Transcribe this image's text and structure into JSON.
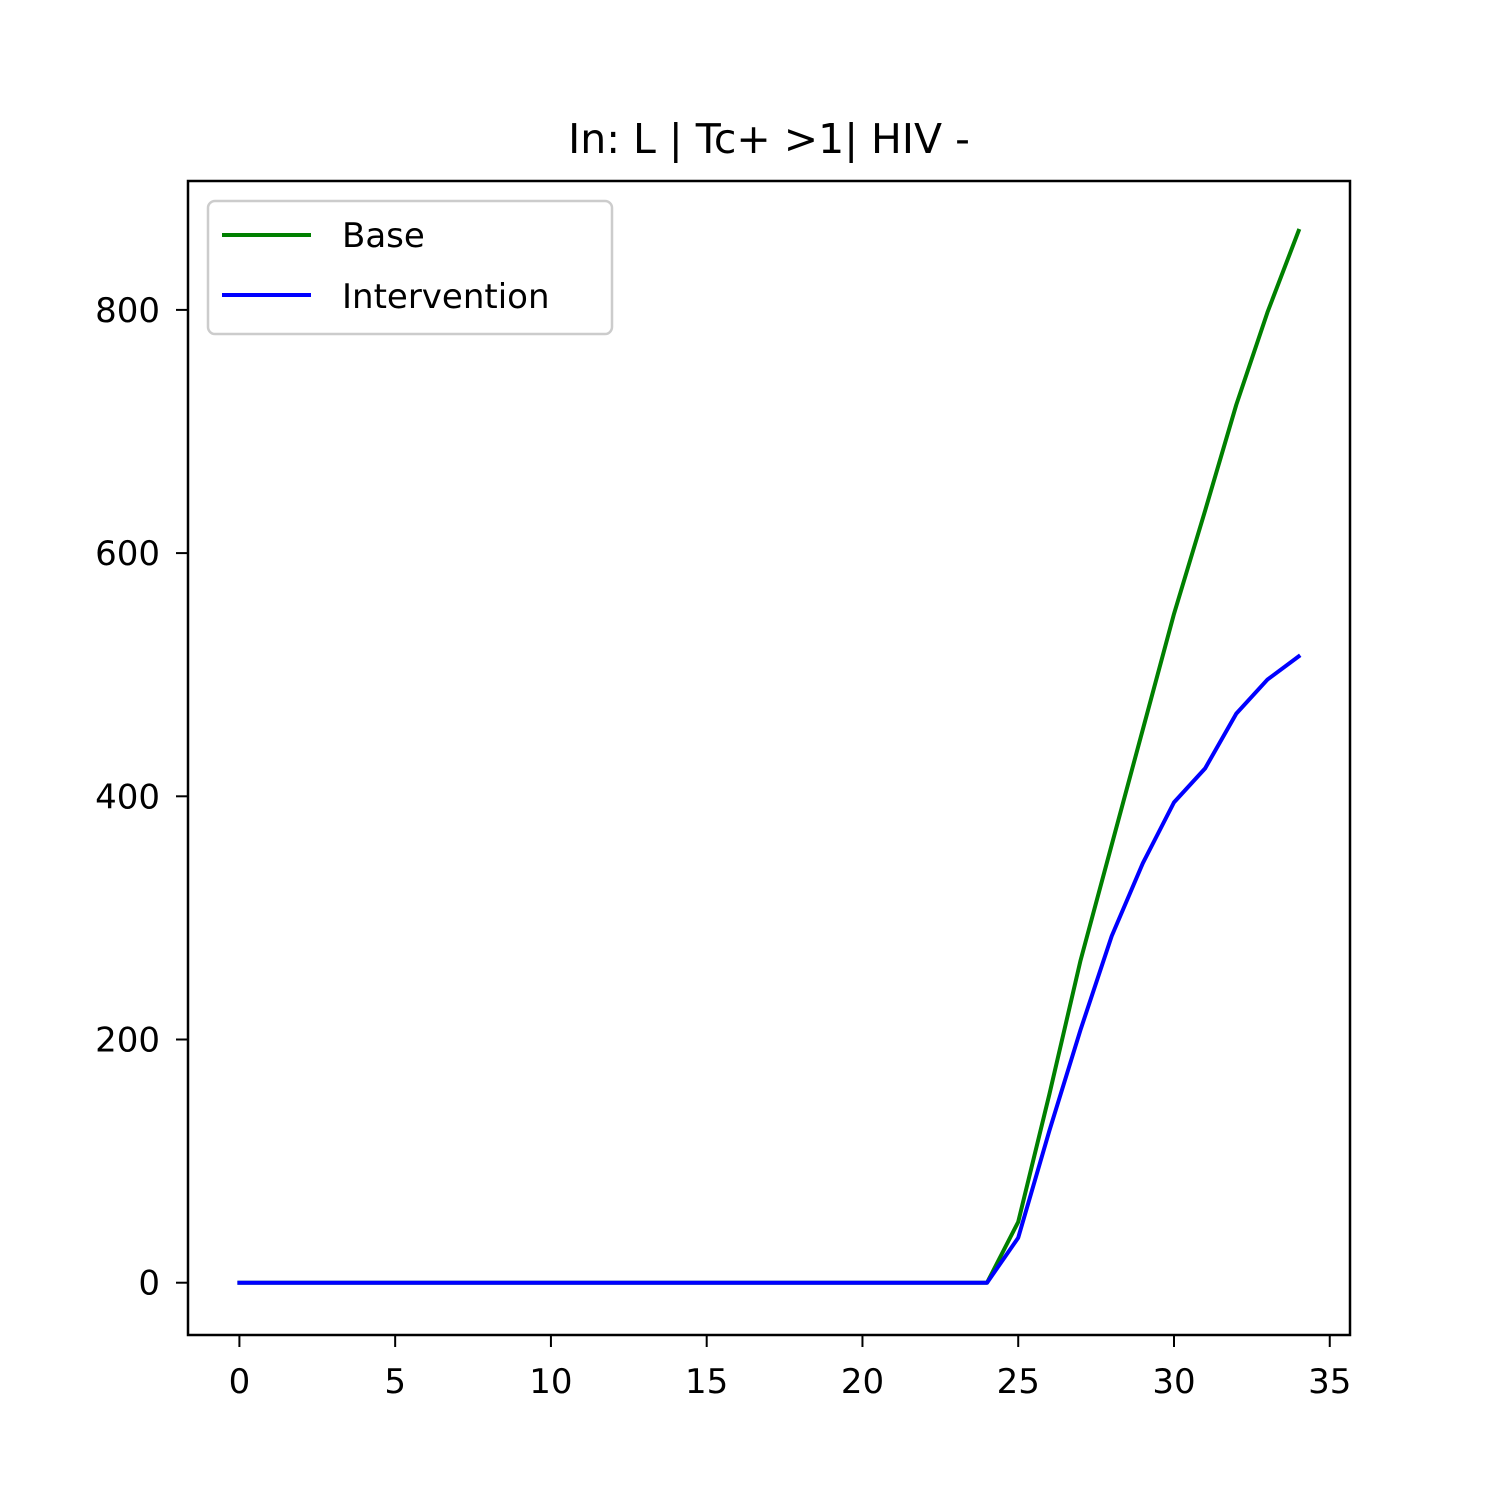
{
  "chart_data": {
    "type": "line",
    "title": "In: L | Tc+ >1| HIV -",
    "xlabel": "",
    "ylabel": "",
    "xlim": [
      -1.65,
      35.65
    ],
    "ylim": [
      -43,
      906
    ],
    "xticks": [
      0,
      5,
      10,
      15,
      20,
      25,
      30,
      35
    ],
    "yticks": [
      0,
      200,
      400,
      600,
      800
    ],
    "grid": false,
    "legend_position": "upper-left",
    "x": [
      0,
      1,
      2,
      3,
      4,
      5,
      6,
      7,
      8,
      9,
      10,
      11,
      12,
      13,
      14,
      15,
      16,
      17,
      18,
      19,
      20,
      21,
      22,
      23,
      24,
      25,
      26,
      27,
      28,
      29,
      30,
      31,
      32,
      33,
      34
    ],
    "series": [
      {
        "name": "Base",
        "color": "#008000",
        "values": [
          0,
          0,
          0,
          0,
          0,
          0,
          0,
          0,
          0,
          0,
          0,
          0,
          0,
          0,
          0,
          0,
          0,
          0,
          0,
          0,
          0,
          0,
          0,
          0,
          0,
          50,
          155,
          265,
          360,
          455,
          550,
          635,
          722,
          798,
          865
        ]
      },
      {
        "name": "Intervention",
        "color": "#0000ff",
        "values": [
          0,
          0,
          0,
          0,
          0,
          0,
          0,
          0,
          0,
          0,
          0,
          0,
          0,
          0,
          0,
          0,
          0,
          0,
          0,
          0,
          0,
          0,
          0,
          0,
          0,
          37,
          125,
          208,
          285,
          345,
          395,
          423,
          468,
          496,
          515
        ]
      }
    ]
  }
}
